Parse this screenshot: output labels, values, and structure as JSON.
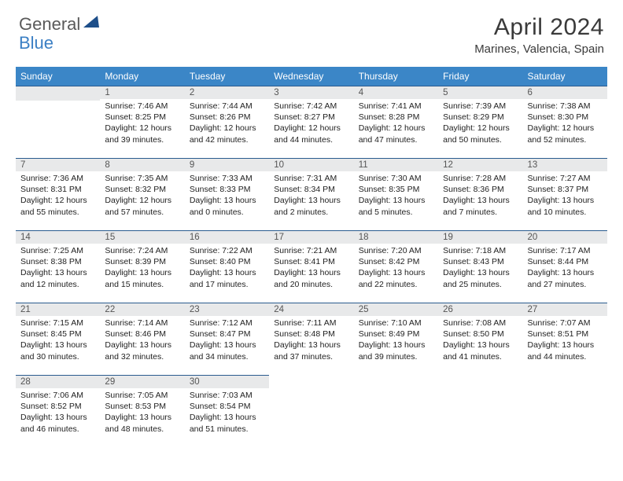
{
  "logo": {
    "text_gray": "General",
    "text_blue": "Blue",
    "gray_color": "#5a5a5a",
    "blue_color": "#3b7fc4",
    "triangle_color": "#1d4e89"
  },
  "header": {
    "title": "April 2024",
    "location": "Marines, Valencia, Spain",
    "title_color": "#3a3a3a",
    "title_fontsize": 30,
    "location_fontsize": 15
  },
  "calendar": {
    "header_bg": "#3b86c7",
    "header_fg": "#ffffff",
    "row_divider_color": "#2a5c8f",
    "daynum_bg": "#e8e9ea",
    "daynum_fg": "#555555",
    "text_color": "#222222",
    "text_fontsize": 10.5,
    "columns": [
      "Sunday",
      "Monday",
      "Tuesday",
      "Wednesday",
      "Thursday",
      "Friday",
      "Saturday"
    ],
    "weeks": [
      [
        null,
        {
          "n": "1",
          "sunrise": "7:46 AM",
          "sunset": "8:25 PM",
          "day1": "Daylight: 12 hours",
          "day2": "and 39 minutes."
        },
        {
          "n": "2",
          "sunrise": "7:44 AM",
          "sunset": "8:26 PM",
          "day1": "Daylight: 12 hours",
          "day2": "and 42 minutes."
        },
        {
          "n": "3",
          "sunrise": "7:42 AM",
          "sunset": "8:27 PM",
          "day1": "Daylight: 12 hours",
          "day2": "and 44 minutes."
        },
        {
          "n": "4",
          "sunrise": "7:41 AM",
          "sunset": "8:28 PM",
          "day1": "Daylight: 12 hours",
          "day2": "and 47 minutes."
        },
        {
          "n": "5",
          "sunrise": "7:39 AM",
          "sunset": "8:29 PM",
          "day1": "Daylight: 12 hours",
          "day2": "and 50 minutes."
        },
        {
          "n": "6",
          "sunrise": "7:38 AM",
          "sunset": "8:30 PM",
          "day1": "Daylight: 12 hours",
          "day2": "and 52 minutes."
        }
      ],
      [
        {
          "n": "7",
          "sunrise": "7:36 AM",
          "sunset": "8:31 PM",
          "day1": "Daylight: 12 hours",
          "day2": "and 55 minutes."
        },
        {
          "n": "8",
          "sunrise": "7:35 AM",
          "sunset": "8:32 PM",
          "day1": "Daylight: 12 hours",
          "day2": "and 57 minutes."
        },
        {
          "n": "9",
          "sunrise": "7:33 AM",
          "sunset": "8:33 PM",
          "day1": "Daylight: 13 hours",
          "day2": "and 0 minutes."
        },
        {
          "n": "10",
          "sunrise": "7:31 AM",
          "sunset": "8:34 PM",
          "day1": "Daylight: 13 hours",
          "day2": "and 2 minutes."
        },
        {
          "n": "11",
          "sunrise": "7:30 AM",
          "sunset": "8:35 PM",
          "day1": "Daylight: 13 hours",
          "day2": "and 5 minutes."
        },
        {
          "n": "12",
          "sunrise": "7:28 AM",
          "sunset": "8:36 PM",
          "day1": "Daylight: 13 hours",
          "day2": "and 7 minutes."
        },
        {
          "n": "13",
          "sunrise": "7:27 AM",
          "sunset": "8:37 PM",
          "day1": "Daylight: 13 hours",
          "day2": "and 10 minutes."
        }
      ],
      [
        {
          "n": "14",
          "sunrise": "7:25 AM",
          "sunset": "8:38 PM",
          "day1": "Daylight: 13 hours",
          "day2": "and 12 minutes."
        },
        {
          "n": "15",
          "sunrise": "7:24 AM",
          "sunset": "8:39 PM",
          "day1": "Daylight: 13 hours",
          "day2": "and 15 minutes."
        },
        {
          "n": "16",
          "sunrise": "7:22 AM",
          "sunset": "8:40 PM",
          "day1": "Daylight: 13 hours",
          "day2": "and 17 minutes."
        },
        {
          "n": "17",
          "sunrise": "7:21 AM",
          "sunset": "8:41 PM",
          "day1": "Daylight: 13 hours",
          "day2": "and 20 minutes."
        },
        {
          "n": "18",
          "sunrise": "7:20 AM",
          "sunset": "8:42 PM",
          "day1": "Daylight: 13 hours",
          "day2": "and 22 minutes."
        },
        {
          "n": "19",
          "sunrise": "7:18 AM",
          "sunset": "8:43 PM",
          "day1": "Daylight: 13 hours",
          "day2": "and 25 minutes."
        },
        {
          "n": "20",
          "sunrise": "7:17 AM",
          "sunset": "8:44 PM",
          "day1": "Daylight: 13 hours",
          "day2": "and 27 minutes."
        }
      ],
      [
        {
          "n": "21",
          "sunrise": "7:15 AM",
          "sunset": "8:45 PM",
          "day1": "Daylight: 13 hours",
          "day2": "and 30 minutes."
        },
        {
          "n": "22",
          "sunrise": "7:14 AM",
          "sunset": "8:46 PM",
          "day1": "Daylight: 13 hours",
          "day2": "and 32 minutes."
        },
        {
          "n": "23",
          "sunrise": "7:12 AM",
          "sunset": "8:47 PM",
          "day1": "Daylight: 13 hours",
          "day2": "and 34 minutes."
        },
        {
          "n": "24",
          "sunrise": "7:11 AM",
          "sunset": "8:48 PM",
          "day1": "Daylight: 13 hours",
          "day2": "and 37 minutes."
        },
        {
          "n": "25",
          "sunrise": "7:10 AM",
          "sunset": "8:49 PM",
          "day1": "Daylight: 13 hours",
          "day2": "and 39 minutes."
        },
        {
          "n": "26",
          "sunrise": "7:08 AM",
          "sunset": "8:50 PM",
          "day1": "Daylight: 13 hours",
          "day2": "and 41 minutes."
        },
        {
          "n": "27",
          "sunrise": "7:07 AM",
          "sunset": "8:51 PM",
          "day1": "Daylight: 13 hours",
          "day2": "and 44 minutes."
        }
      ],
      [
        {
          "n": "28",
          "sunrise": "7:06 AM",
          "sunset": "8:52 PM",
          "day1": "Daylight: 13 hours",
          "day2": "and 46 minutes."
        },
        {
          "n": "29",
          "sunrise": "7:05 AM",
          "sunset": "8:53 PM",
          "day1": "Daylight: 13 hours",
          "day2": "and 48 minutes."
        },
        {
          "n": "30",
          "sunrise": "7:03 AM",
          "sunset": "8:54 PM",
          "day1": "Daylight: 13 hours",
          "day2": "and 51 minutes."
        },
        null,
        null,
        null,
        null
      ]
    ],
    "labels": {
      "sunrise_prefix": "Sunrise: ",
      "sunset_prefix": "Sunset: "
    }
  }
}
